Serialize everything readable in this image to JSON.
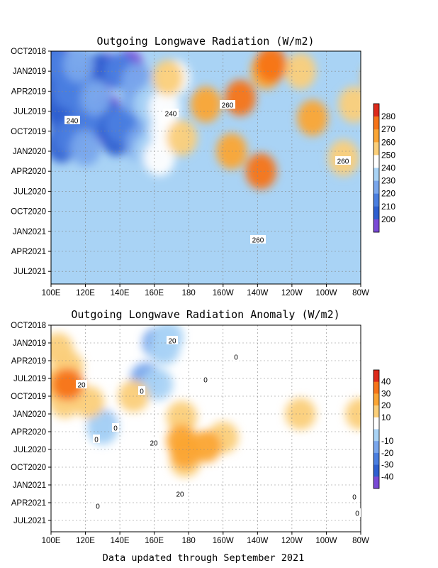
{
  "footer": "Data updated through September 2021",
  "chart_data": [
    {
      "type": "heatmap",
      "title": "Outgoing Longwave Radiation (W/m2)",
      "xlabel": "",
      "ylabel": "",
      "x_ticks": [
        "100E",
        "120E",
        "140E",
        "160E",
        "180",
        "160W",
        "140W",
        "120W",
        "100W",
        "80W"
      ],
      "y_ticks": [
        "OCT2018",
        "JAN2019",
        "APR2019",
        "JUL2019",
        "OCT2019",
        "JAN2020",
        "APR2020",
        "JUL2020",
        "OCT2020",
        "JAN2021",
        "APR2021",
        "JUL2021"
      ],
      "colorbar_ticks": [
        200,
        210,
        220,
        230,
        240,
        250,
        260,
        270,
        280
      ],
      "colorbar_colors": [
        "#7a4ad6",
        "#2e5fd0",
        "#4a7ee0",
        "#79a6ec",
        "#a9d3f5",
        "#ffffff",
        "#fbcf7a",
        "#fba534",
        "#f77418",
        "#dd2a1a"
      ],
      "contour_labels": [
        "240",
        "240",
        "260",
        "260",
        "260"
      ],
      "color_regions": [
        {
          "level": 0,
          "cells": [
            [
              100,
              2
            ],
            [
              103,
              1
            ],
            [
              133,
              3
            ],
            [
              130,
              11
            ],
            [
              145,
              2.5
            ],
            [
              132,
              9
            ]
          ]
        },
        {
          "level": 1,
          "cells": [
            [
              100,
              1
            ],
            [
              102,
              3
            ],
            [
              106,
              5
            ],
            [
              103,
              8
            ],
            [
              107,
              10
            ],
            [
              128,
              3
            ],
            [
              132,
              10
            ],
            [
              138,
              13
            ],
            [
              106,
              14
            ],
            [
              125,
              10.5
            ]
          ]
        },
        {
          "level": 2,
          "cells": [
            [
              104,
              2
            ],
            [
              110,
              6
            ],
            [
              120,
              10
            ],
            [
              140,
              11
            ],
            [
              150,
              10.5
            ],
            [
              140,
              3
            ],
            [
              116,
              5
            ],
            [
              111,
              13
            ]
          ]
        },
        {
          "level": 3,
          "cells": [
            [
              116,
              2
            ],
            [
              126,
              7
            ],
            [
              120,
              14.5
            ],
            [
              152,
              14
            ],
            [
              158,
              11.5
            ],
            [
              150,
              7
            ],
            [
              150,
              4.5
            ]
          ]
        },
        {
          "level": 4,
          "cells": [
            [
              157,
              15
            ],
            [
              157,
              8
            ],
            [
              164,
              6
            ],
            [
              163,
              11.5
            ]
          ]
        },
        {
          "level": 5,
          "cells": [
            [
              163,
              16
            ],
            [
              166,
              8.5
            ],
            [
              172,
              4
            ],
            [
              167,
              12
            ]
          ]
        },
        {
          "level": 6,
          "cells": [
            [
              168,
              4
            ],
            [
              176,
              13
            ],
            [
              245,
              3
            ],
            [
              276,
              8
            ],
            [
              270,
              16
            ]
          ]
        },
        {
          "level": 7,
          "cells": [
            [
              190,
              8
            ],
            [
              225,
              3
            ],
            [
              205,
              15
            ],
            [
              252,
              10
            ],
            [
              290,
              4
            ]
          ]
        },
        {
          "level": 8,
          "cells": [
            [
              210,
              7
            ],
            [
              222,
              18
            ],
            [
              228,
              2
            ]
          ]
        }
      ]
    },
    {
      "type": "heatmap",
      "title": "Outgoing Longwave Radiation Anomaly (W/m2)",
      "xlabel": "",
      "ylabel": "",
      "x_ticks": [
        "100E",
        "120E",
        "140E",
        "160E",
        "180",
        "160W",
        "140W",
        "120W",
        "100W",
        "80W"
      ],
      "y_ticks": [
        "OCT2018",
        "JAN2019",
        "APR2019",
        "JUL2019",
        "OCT2019",
        "JAN2020",
        "APR2020",
        "JUL2020",
        "OCT2020",
        "JAN2021",
        "APR2021",
        "JUL2021"
      ],
      "colorbar_ticks": [
        -40,
        -30,
        -20,
        -10,
        10,
        20,
        30,
        40
      ],
      "colorbar_colors": [
        "#7a4ad6",
        "#2e5fd0",
        "#4a7ee0",
        "#79a6ec",
        "#a9d3f5",
        "#ffffff",
        "#fbcf7a",
        "#fba534",
        "#f77418",
        "#dd2a1a"
      ],
      "contour_labels": [
        "20",
        "20",
        "0",
        "0",
        "0",
        "0",
        "0",
        "0",
        "20",
        "20",
        "0",
        "0"
      ],
      "color_regions": [
        {
          "level": 3,
          "cells": [
            [
              162,
              3
            ],
            [
              155,
              9
            ],
            [
              130,
              17
            ]
          ]
        },
        {
          "level": 4,
          "cells": [
            [
              168,
              2
            ],
            [
              162,
              10
            ],
            [
              130,
              17.5
            ],
            [
              166,
              4
            ]
          ]
        },
        {
          "level": 6,
          "cells": [
            [
              104,
              4
            ],
            [
              110,
              7
            ],
            [
              100,
              10
            ],
            [
              122,
              13
            ],
            [
              148,
              12
            ],
            [
              108,
              13
            ],
            [
              176,
              15.5
            ],
            [
              200,
              19
            ],
            [
              245,
              15
            ],
            [
              280,
              15
            ],
            [
              178,
              23
            ]
          ]
        },
        {
          "level": 7,
          "cells": [
            [
              108,
              10
            ],
            [
              176,
              19.5
            ],
            [
              190,
              20.5
            ],
            [
              178,
              21.5
            ]
          ]
        },
        {
          "level": 8,
          "cells": [
            [
              110,
              10
            ]
          ]
        }
      ]
    }
  ]
}
